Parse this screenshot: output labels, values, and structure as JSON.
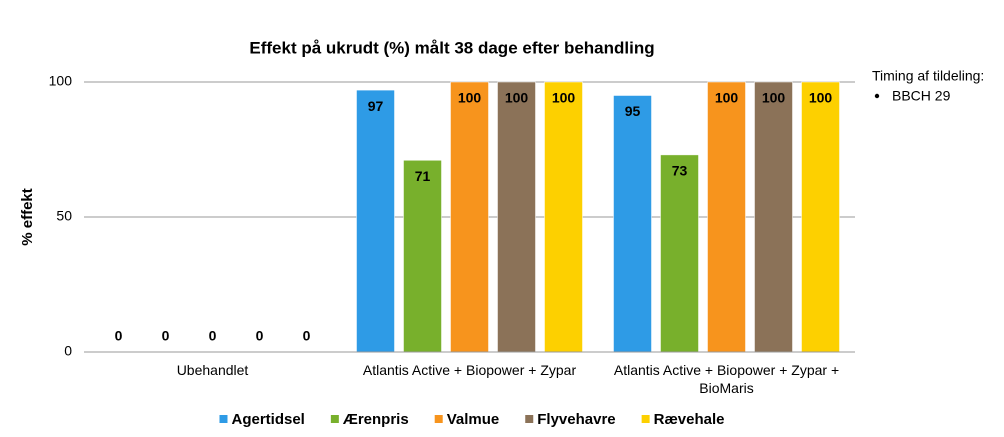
{
  "chart_data": {
    "type": "bar",
    "title": "Effekt på ukrudt (%) målt 38 dage efter behandling",
    "y_label": "% effekt",
    "categories": [
      "Ubehandlet",
      "Atlantis Active + Biopower + Zypar",
      "Atlantis Active + Biopower + Zypar + BioMaris"
    ],
    "series": [
      {
        "name": "Agertidsel",
        "color": "#2e9be6",
        "values": [
          0,
          97,
          95
        ]
      },
      {
        "name": "Ærenpris",
        "color": "#78b02c",
        "values": [
          0,
          71,
          73
        ]
      },
      {
        "name": "Valmue",
        "color": "#f7941d",
        "values": [
          0,
          100,
          100
        ]
      },
      {
        "name": "Flyvehavre",
        "color": "#8b7258",
        "values": [
          0,
          100,
          100
        ]
      },
      {
        "name": "Rævehale",
        "color": "#fdd000",
        "values": [
          0,
          100,
          100
        ]
      }
    ],
    "ylim": [
      0,
      100
    ],
    "yticks": [
      0,
      50,
      100
    ],
    "grid": true,
    "annotation": {
      "title": "Timing af tildeling:",
      "items": [
        "BBCH 29"
      ]
    }
  }
}
